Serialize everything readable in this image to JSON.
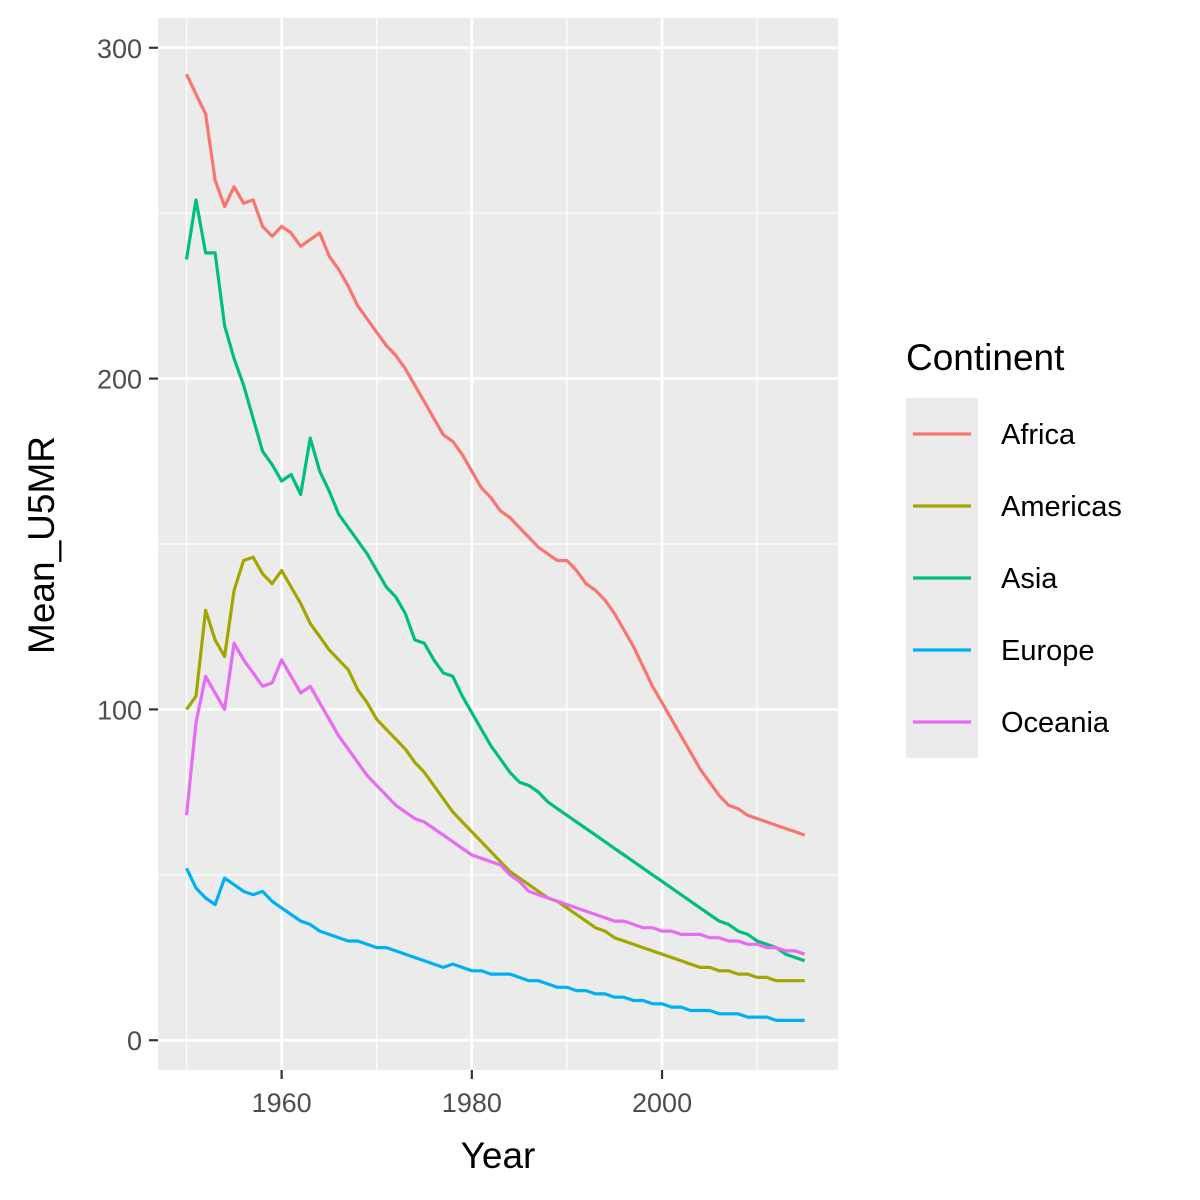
{
  "chart_data": {
    "type": "line",
    "title": "",
    "xlabel": "Year",
    "ylabel": "Mean_U5MR",
    "xlim": [
      1947,
      2018.5
    ],
    "ylim": [
      -9,
      309
    ],
    "x_ticks": [
      1960,
      1980,
      2000
    ],
    "y_ticks": [
      0,
      100,
      200,
      300
    ],
    "x_tick_labels": [
      "1960",
      "1980",
      "2000"
    ],
    "y_tick_labels": [
      "0",
      "100",
      "200",
      "300"
    ],
    "grid": true,
    "legend": {
      "title": "Continent",
      "placement": "right"
    },
    "series": [
      {
        "name": "Africa",
        "color": "#F8766D",
        "x": [
          1950,
          1951,
          1952,
          1953,
          1954,
          1955,
          1956,
          1957,
          1958,
          1959,
          1960,
          1961,
          1962,
          1963,
          1964,
          1965,
          1966,
          1967,
          1968,
          1969,
          1970,
          1971,
          1972,
          1973,
          1974,
          1975,
          1976,
          1977,
          1978,
          1979,
          1980,
          1981,
          1982,
          1983,
          1984,
          1985,
          1986,
          1987,
          1988,
          1989,
          1990,
          1991,
          1992,
          1993,
          1994,
          1995,
          1996,
          1997,
          1998,
          1999,
          2000,
          2001,
          2002,
          2003,
          2004,
          2005,
          2006,
          2007,
          2008,
          2009,
          2010,
          2011,
          2012,
          2013,
          2014,
          2015
        ],
        "y": [
          292,
          286,
          280,
          260,
          252,
          258,
          253,
          254,
          246,
          243,
          246,
          244,
          240,
          242,
          244,
          237,
          233,
          228,
          222,
          218,
          214,
          210,
          207,
          203,
          198,
          193,
          188,
          183,
          181,
          177,
          172,
          167,
          164,
          160,
          158,
          155,
          152,
          149,
          147,
          145,
          145,
          142,
          138,
          136,
          133,
          129,
          124,
          119,
          113,
          107,
          102,
          97,
          92,
          87,
          82,
          78,
          74,
          71,
          70,
          68,
          67,
          66,
          65,
          64,
          63,
          62
        ]
      },
      {
        "name": "Americas",
        "color": "#A3A500",
        "x": [
          1950,
          1951,
          1952,
          1953,
          1954,
          1955,
          1956,
          1957,
          1958,
          1959,
          1960,
          1961,
          1962,
          1963,
          1964,
          1965,
          1966,
          1967,
          1968,
          1969,
          1970,
          1971,
          1972,
          1973,
          1974,
          1975,
          1976,
          1977,
          1978,
          1979,
          1980,
          1981,
          1982,
          1983,
          1984,
          1985,
          1986,
          1987,
          1988,
          1989,
          1990,
          1991,
          1992,
          1993,
          1994,
          1995,
          1996,
          1997,
          1998,
          1999,
          2000,
          2001,
          2002,
          2003,
          2004,
          2005,
          2006,
          2007,
          2008,
          2009,
          2010,
          2011,
          2012,
          2013,
          2014,
          2015
        ],
        "y": [
          100,
          104,
          130,
          121,
          116,
          136,
          145,
          146,
          141,
          138,
          142,
          137,
          132,
          126,
          122,
          118,
          115,
          112,
          106,
          102,
          97,
          94,
          91,
          88,
          84,
          81,
          77,
          73,
          69,
          66,
          63,
          60,
          57,
          54,
          51,
          49,
          47,
          45,
          43,
          42,
          40,
          38,
          36,
          34,
          33,
          31,
          30,
          29,
          28,
          27,
          26,
          25,
          24,
          23,
          22,
          22,
          21,
          21,
          20,
          20,
          19,
          19,
          18,
          18,
          18,
          18
        ]
      },
      {
        "name": "Asia",
        "color": "#00BF7D",
        "x": [
          1950,
          1951,
          1952,
          1953,
          1954,
          1955,
          1956,
          1957,
          1958,
          1959,
          1960,
          1961,
          1962,
          1963,
          1964,
          1965,
          1966,
          1967,
          1968,
          1969,
          1970,
          1971,
          1972,
          1973,
          1974,
          1975,
          1976,
          1977,
          1978,
          1979,
          1980,
          1981,
          1982,
          1983,
          1984,
          1985,
          1986,
          1987,
          1988,
          1989,
          1990,
          1991,
          1992,
          1993,
          1994,
          1995,
          1996,
          1997,
          1998,
          1999,
          2000,
          2001,
          2002,
          2003,
          2004,
          2005,
          2006,
          2007,
          2008,
          2009,
          2010,
          2011,
          2012,
          2013,
          2014,
          2015
        ],
        "y": [
          236,
          254,
          238,
          238,
          216,
          206,
          198,
          188,
          178,
          174,
          169,
          171,
          165,
          182,
          172,
          166,
          159,
          155,
          151,
          147,
          142,
          137,
          134,
          129,
          121,
          120,
          115,
          111,
          110,
          104,
          99,
          94,
          89,
          85,
          81,
          78,
          77,
          75,
          72,
          70,
          68,
          66,
          64,
          62,
          60,
          58,
          56,
          54,
          52,
          50,
          48,
          46,
          44,
          42,
          40,
          38,
          36,
          35,
          33,
          32,
          30,
          29,
          28,
          26,
          25,
          24
        ]
      },
      {
        "name": "Europe",
        "color": "#00B0F6",
        "x": [
          1950,
          1951,
          1952,
          1953,
          1954,
          1955,
          1956,
          1957,
          1958,
          1959,
          1960,
          1961,
          1962,
          1963,
          1964,
          1965,
          1966,
          1967,
          1968,
          1969,
          1970,
          1971,
          1972,
          1973,
          1974,
          1975,
          1976,
          1977,
          1978,
          1979,
          1980,
          1981,
          1982,
          1983,
          1984,
          1985,
          1986,
          1987,
          1988,
          1989,
          1990,
          1991,
          1992,
          1993,
          1994,
          1995,
          1996,
          1997,
          1998,
          1999,
          2000,
          2001,
          2002,
          2003,
          2004,
          2005,
          2006,
          2007,
          2008,
          2009,
          2010,
          2011,
          2012,
          2013,
          2014,
          2015
        ],
        "y": [
          52,
          46,
          43,
          41,
          49,
          47,
          45,
          44,
          45,
          42,
          40,
          38,
          36,
          35,
          33,
          32,
          31,
          30,
          30,
          29,
          28,
          28,
          27,
          26,
          25,
          24,
          23,
          22,
          23,
          22,
          21,
          21,
          20,
          20,
          20,
          19,
          18,
          18,
          17,
          16,
          16,
          15,
          15,
          14,
          14,
          13,
          13,
          12,
          12,
          11,
          11,
          10,
          10,
          9,
          9,
          9,
          8,
          8,
          8,
          7,
          7,
          7,
          6,
          6,
          6,
          6
        ]
      },
      {
        "name": "Oceania",
        "color": "#E76BF3",
        "x": [
          1950,
          1951,
          1952,
          1953,
          1954,
          1955,
          1956,
          1957,
          1958,
          1959,
          1960,
          1961,
          1962,
          1963,
          1964,
          1965,
          1966,
          1967,
          1968,
          1969,
          1970,
          1971,
          1972,
          1973,
          1974,
          1975,
          1976,
          1977,
          1978,
          1979,
          1980,
          1981,
          1982,
          1983,
          1984,
          1985,
          1986,
          1987,
          1988,
          1989,
          1990,
          1991,
          1992,
          1993,
          1994,
          1995,
          1996,
          1997,
          1998,
          1999,
          2000,
          2001,
          2002,
          2003,
          2004,
          2005,
          2006,
          2007,
          2008,
          2009,
          2010,
          2011,
          2012,
          2013,
          2014,
          2015
        ],
        "y": [
          68,
          96,
          110,
          105,
          100,
          120,
          115,
          111,
          107,
          108,
          115,
          110,
          105,
          107,
          102,
          97,
          92,
          88,
          84,
          80,
          77,
          74,
          71,
          69,
          67,
          66,
          64,
          62,
          60,
          58,
          56,
          55,
          54,
          53,
          50,
          48,
          45,
          44,
          43,
          42,
          41,
          40,
          39,
          38,
          37,
          36,
          36,
          35,
          34,
          34,
          33,
          33,
          32,
          32,
          32,
          31,
          31,
          30,
          30,
          29,
          29,
          28,
          28,
          27,
          27,
          26
        ]
      }
    ]
  }
}
